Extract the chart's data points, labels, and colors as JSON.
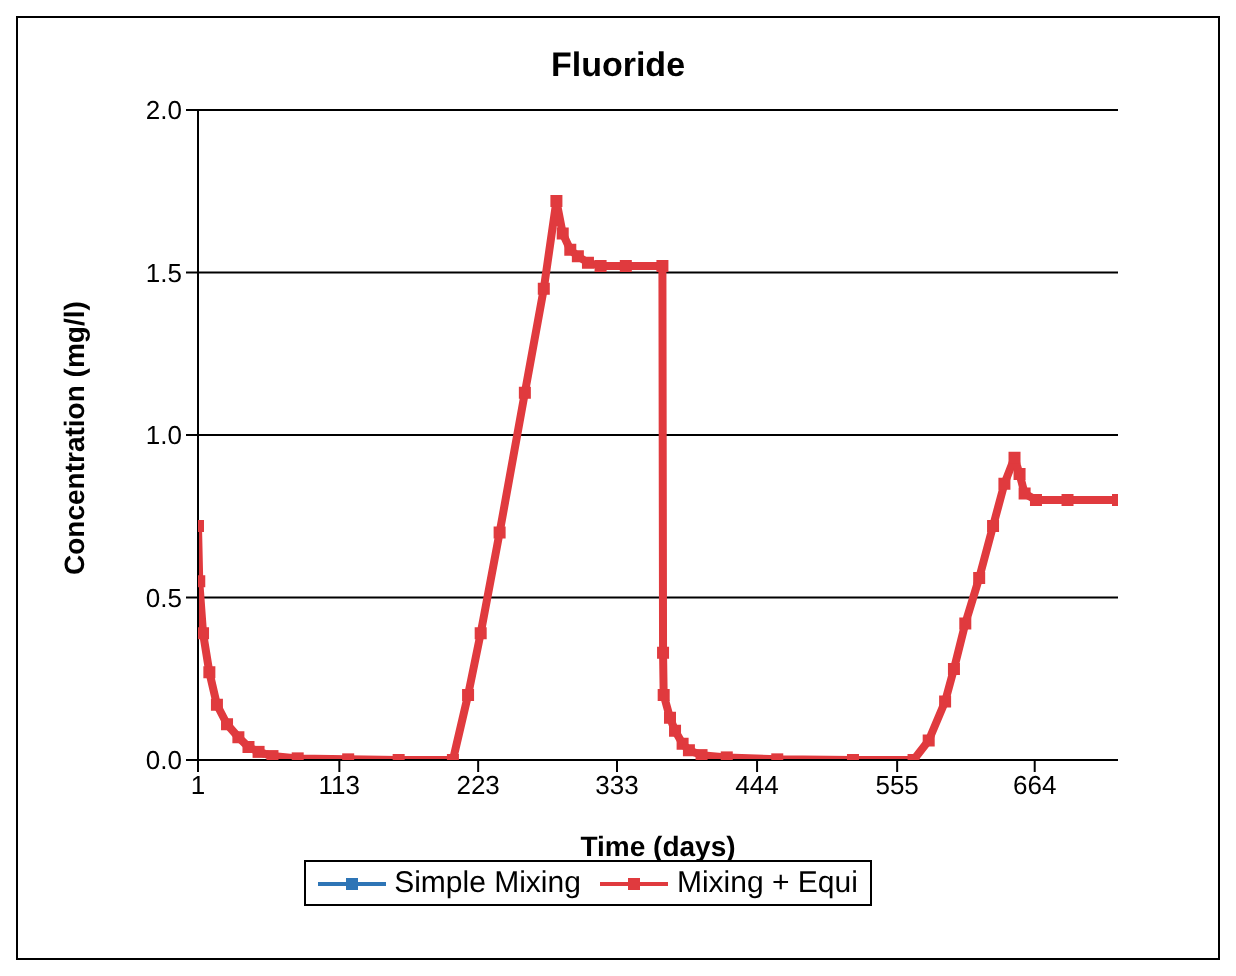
{
  "chart_data": {
    "type": "line",
    "title": "Fluoride",
    "xlabel": "Time (days)",
    "ylabel": "Concentration (mg/l)",
    "x": [
      1,
      2,
      5,
      10,
      16,
      24,
      33,
      41,
      49,
      60,
      80,
      120,
      160,
      203,
      215,
      225,
      240,
      260,
      275,
      285,
      290,
      296,
      302,
      310,
      320,
      340,
      369,
      369.5,
      370,
      375,
      379,
      385,
      390,
      400,
      420,
      460,
      520,
      568,
      580,
      593,
      600,
      609,
      620,
      631,
      640,
      648,
      652,
      656,
      665,
      690,
      730
    ],
    "series": [
      {
        "name": "Simple Mixing",
        "color": "#2e75b6",
        "values": [
          null,
          null,
          null,
          null,
          null,
          null,
          null,
          null,
          null,
          null,
          null,
          null,
          null,
          null,
          null,
          null,
          null,
          null,
          null,
          null,
          null,
          null,
          null,
          null,
          null,
          null,
          null,
          null,
          null,
          null,
          null,
          null,
          null,
          null,
          null,
          null,
          null,
          null,
          null,
          null,
          null,
          null,
          null,
          null,
          null,
          null,
          null,
          null,
          null,
          null,
          null
        ]
      },
      {
        "name": "Mixing + Equi",
        "color": "#e03a3e",
        "values": [
          0.72,
          0.55,
          0.39,
          0.27,
          0.17,
          0.11,
          0.07,
          0.04,
          0.025,
          0.012,
          0.005,
          0.002,
          0,
          0,
          0.2,
          0.39,
          0.7,
          1.13,
          1.45,
          1.72,
          1.62,
          1.57,
          1.55,
          1.53,
          1.52,
          1.52,
          1.52,
          0.33,
          0.2,
          0.13,
          0.09,
          0.05,
          0.03,
          0.015,
          0.008,
          0.002,
          0,
          0,
          0.06,
          0.18,
          0.28,
          0.42,
          0.56,
          0.72,
          0.85,
          0.93,
          0.88,
          0.82,
          0.8,
          0.8,
          0.8
        ]
      }
    ],
    "xlim": [
      1,
      730
    ],
    "xticks": [
      1,
      113,
      223,
      333,
      444,
      555,
      664
    ],
    "ylim": [
      0,
      2
    ],
    "yticks": [
      {
        "value": 0,
        "label": "0.0"
      },
      {
        "value": 0.5,
        "label": "0.5"
      },
      {
        "value": 1,
        "label": "1.0"
      },
      {
        "value": 1.5,
        "label": "1.5"
      },
      {
        "value": 2,
        "label": "2.0"
      }
    ],
    "grid": "y",
    "legend": "bottom",
    "marker": "square",
    "line_style": "solid"
  }
}
